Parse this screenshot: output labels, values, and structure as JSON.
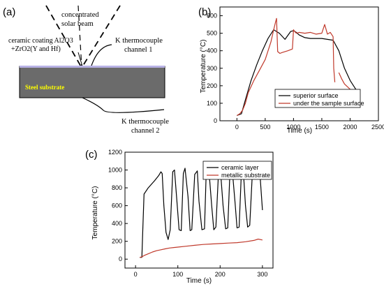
{
  "panel_labels": {
    "a": "(a)",
    "b": "(b)",
    "c": "(c)"
  },
  "diagram": {
    "beam_label_line1": "concentrated",
    "beam_label_line2": "solar beam",
    "coating_label_line1": "ceramic coating Al2O3",
    "coating_label_line2": "+ZrO2(Y and Hf)",
    "tc1_label_line1": "K thermocouple",
    "tc1_label_line2": "channel 1",
    "substrate_label": "Steel substrate",
    "tc2_label_line1": "K thermocouple",
    "tc2_label_line2": "channel 2",
    "colors": {
      "substrate": "#6b6b6b",
      "coating": "#b9b2e6",
      "substrate_text": "#ffff00"
    }
  },
  "chart_data": [
    {
      "type": "line",
      "panel": "b",
      "title": "",
      "xlabel": "Time (s)",
      "ylabel": "Temperature (°C)",
      "xlim": [
        -300,
        2500
      ],
      "ylim": [
        0,
        650
      ],
      "xticks": [
        0,
        500,
        1000,
        1500,
        2000,
        2500
      ],
      "yticks": [
        0,
        100,
        200,
        300,
        400,
        500,
        600
      ],
      "legend_position": "bottom-right",
      "series": [
        {
          "name": "superior surface",
          "color": "#000000",
          "x": [
            0,
            80,
            150,
            250,
            350,
            450,
            550,
            650,
            750,
            850,
            950,
            1000,
            1050,
            1100,
            1200,
            1300,
            1400,
            1500,
            1600,
            1700,
            1800,
            1900,
            2000,
            2100,
            2140
          ],
          "y": [
            30,
            40,
            120,
            230,
            320,
            400,
            470,
            520,
            500,
            465,
            510,
            515,
            505,
            490,
            475,
            470,
            470,
            470,
            465,
            460,
            400,
            300,
            230,
            180,
            165
          ]
        },
        {
          "name": "under the sample surface",
          "color": "#c0392b",
          "x": [
            0,
            50,
            100,
            150,
            200,
            300,
            400,
            500,
            600,
            650,
            680,
            700,
            720,
            760,
            800,
            900,
            980,
            1000,
            1020,
            1050,
            1100,
            1200,
            1300,
            1400,
            1500,
            1550,
            1600,
            1650,
            1700,
            1710,
            1730,
            1740,
            1760,
            1780,
            1800,
            1850,
            1900,
            2000,
            2100,
            2140
          ],
          "y": [
            30,
            40,
            60,
            100,
            160,
            230,
            290,
            350,
            450,
            520,
            560,
            585,
            395,
            385,
            390,
            400,
            410,
            520,
            510,
            500,
            505,
            500,
            505,
            495,
            500,
            550,
            495,
            505,
            480,
            300,
            220,
            null,
            null,
            null,
            275,
            240,
            210,
            180,
            150,
            140
          ]
        }
      ]
    },
    {
      "type": "line",
      "panel": "c",
      "title": "",
      "xlabel": "Time (s)",
      "ylabel": "Temperature (°C)",
      "xlim": [
        -25,
        325
      ],
      "ylim": [
        -100,
        1200
      ],
      "xticks": [
        0,
        100,
        200,
        300
      ],
      "yticks": [
        0,
        200,
        400,
        600,
        800,
        1000,
        1200
      ],
      "legend_position": "top-right",
      "series": [
        {
          "name": "ceramic layer",
          "color": "#000000",
          "x": [
            10,
            15,
            17,
            20,
            30,
            45,
            55,
            60,
            63,
            67,
            72,
            77,
            82,
            88,
            92,
            97,
            103,
            108,
            113,
            117,
            124,
            129,
            133,
            140,
            146,
            150,
            157,
            163,
            167,
            174,
            180,
            185,
            190,
            196,
            201,
            207,
            213,
            218,
            223,
            229,
            235,
            240,
            245,
            250,
            255,
            260,
            265,
            270,
            276,
            283,
            290,
            295,
            300
          ],
          "y": [
            20,
            20,
            300,
            730,
            800,
            880,
            940,
            980,
            960,
            600,
            300,
            220,
            330,
            980,
            1000,
            700,
            330,
            320,
            960,
            1020,
            700,
            320,
            330,
            950,
            990,
            650,
            330,
            340,
            960,
            970,
            600,
            330,
            360,
            960,
            980,
            600,
            340,
            350,
            950,
            980,
            650,
            350,
            360,
            950,
            980,
            600,
            360,
            380,
            940,
            970,
            950,
            900,
            550
          ]
        },
        {
          "name": "metallic substrate",
          "color": "#c0392b",
          "x": [
            10,
            15,
            20,
            30,
            40,
            50,
            60,
            70,
            80,
            90,
            100,
            120,
            140,
            160,
            180,
            200,
            220,
            240,
            260,
            280,
            290,
            300
          ],
          "y": [
            20,
            25,
            40,
            60,
            80,
            95,
            105,
            115,
            125,
            130,
            135,
            145,
            155,
            165,
            170,
            175,
            180,
            185,
            195,
            210,
            225,
            215
          ]
        }
      ]
    }
  ]
}
